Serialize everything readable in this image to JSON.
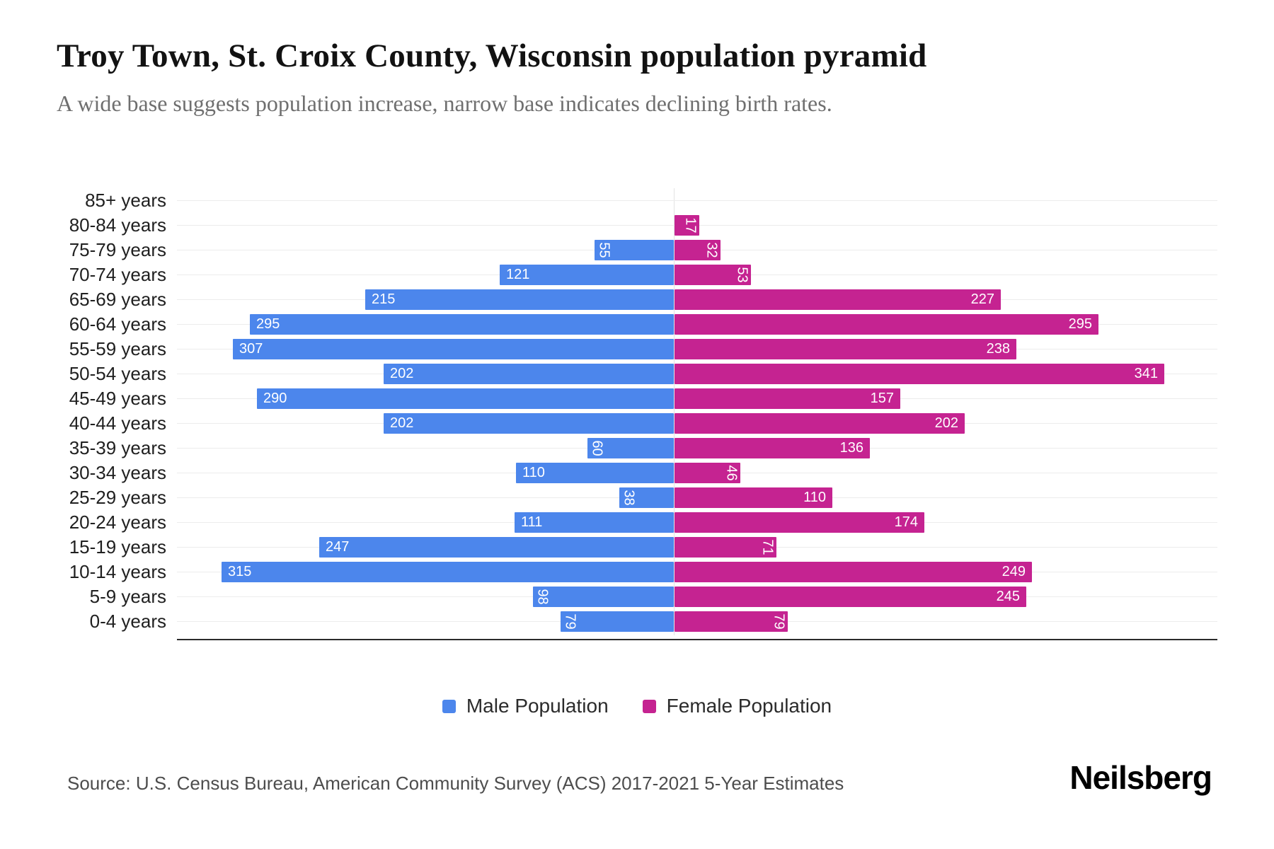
{
  "header": {
    "title": "Troy Town, St. Croix County, Wisconsin population pyramid",
    "subtitle": "A wide base suggests population increase, narrow base indicates declining birth rates."
  },
  "legend": {
    "male_label": "Male Population",
    "female_label": "Female Population"
  },
  "footer": {
    "source": "Source: U.S. Census Bureau, American Community Survey (ACS) 2017-2021 5-Year Estimates",
    "brand": "Neilsberg"
  },
  "colors": {
    "male": "#4c86ec",
    "female": "#c52391",
    "gridline": "#ececec",
    "axis_line": "#2b2b2b",
    "bar_value_text": "#ffffff"
  },
  "chart_data": {
    "type": "bar",
    "variant": "population-pyramid",
    "title": "Troy Town, St. Croix County, Wisconsin population pyramid",
    "categories": [
      "85+ years",
      "80-84 years",
      "75-79 years",
      "70-74 years",
      "65-69 years",
      "60-64 years",
      "55-59 years",
      "50-54 years",
      "45-49 years",
      "40-44 years",
      "35-39 years",
      "30-34 years",
      "25-29 years",
      "20-24 years",
      "15-19 years",
      "10-14 years",
      "5-9 years",
      "0-4 years"
    ],
    "series": [
      {
        "name": "Male Population",
        "side": "left",
        "values": [
          0,
          0,
          55,
          121,
          215,
          295,
          307,
          202,
          290,
          202,
          60,
          110,
          38,
          111,
          247,
          315,
          98,
          79
        ]
      },
      {
        "name": "Female Population",
        "side": "right",
        "values": [
          0,
          17,
          32,
          53,
          227,
          295,
          238,
          341,
          157,
          202,
          136,
          46,
          110,
          174,
          71,
          249,
          245,
          79
        ]
      }
    ],
    "value_labels_shown": true,
    "value_label_rotated_below": 100,
    "axis_max_per_side_estimate": 375,
    "grid": true,
    "legend_position": "bottom"
  }
}
